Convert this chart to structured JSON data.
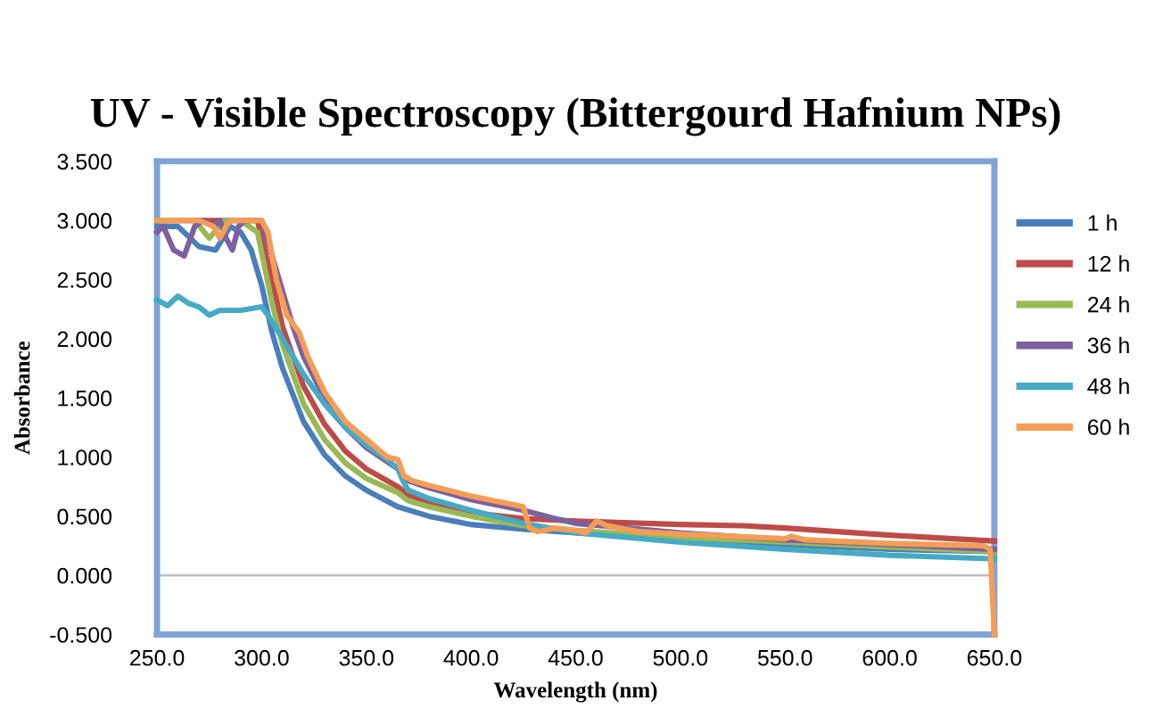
{
  "chart_data": {
    "type": "line",
    "title": "UV - Visible Spectroscopy (Bittergourd Hafnium NPs)",
    "xlabel": "Wavelength (nm)",
    "ylabel": "Absorbance",
    "xlim": [
      250,
      650
    ],
    "ylim": [
      -0.5,
      3.5
    ],
    "xticks": [
      {
        "value": 250,
        "label": "250.0"
      },
      {
        "value": 300,
        "label": "300.0"
      },
      {
        "value": 350,
        "label": "350.0"
      },
      {
        "value": 400,
        "label": "400.0"
      },
      {
        "value": 450,
        "label": "450.0"
      },
      {
        "value": 500,
        "label": "500.0"
      },
      {
        "value": 550,
        "label": "550.0"
      },
      {
        "value": 600,
        "label": "600.0"
      },
      {
        "value": 650,
        "label": "650.0"
      }
    ],
    "yticks": [
      {
        "value": -0.5,
        "label": "-0.500"
      },
      {
        "value": 0,
        "label": "0.000"
      },
      {
        "value": 0.5,
        "label": "0.500"
      },
      {
        "value": 1,
        "label": "1.000"
      },
      {
        "value": 1.5,
        "label": "1.500"
      },
      {
        "value": 2,
        "label": "2.000"
      },
      {
        "value": 2.5,
        "label": "2.500"
      },
      {
        "value": 3,
        "label": "3.000"
      },
      {
        "value": 3.5,
        "label": "3.500"
      }
    ],
    "ref_lines": [
      {
        "axis": "y",
        "value": 0,
        "color": "#bfbfbf"
      }
    ],
    "grid": false,
    "legend": "right",
    "marker": "none",
    "line_style": "solid",
    "series": [
      {
        "name": "1 h",
        "color": "#4a7ebb",
        "x": [
          250,
          260,
          270,
          278,
          285,
          290,
          295,
          300,
          305,
          310,
          320,
          330,
          340,
          350,
          365,
          380,
          400,
          425,
          450,
          500,
          550,
          600,
          650
        ],
        "values": [
          2.95,
          2.95,
          2.78,
          2.75,
          2.95,
          2.9,
          2.75,
          2.45,
          2.05,
          1.75,
          1.3,
          1.02,
          0.84,
          0.72,
          0.58,
          0.5,
          0.43,
          0.39,
          0.36,
          0.31,
          0.26,
          0.22,
          0.2
        ]
      },
      {
        "name": "12 h",
        "color": "#be4b48",
        "x": [
          250,
          290,
          298,
          300,
          305,
          310,
          320,
          330,
          340,
          350,
          365,
          370,
          380,
          400,
          425,
          450,
          500,
          530,
          550,
          600,
          650
        ],
        "values": [
          3.0,
          3.0,
          3.0,
          2.85,
          2.5,
          2.1,
          1.6,
          1.28,
          1.05,
          0.9,
          0.75,
          0.68,
          0.62,
          0.53,
          0.48,
          0.46,
          0.43,
          0.42,
          0.4,
          0.34,
          0.29
        ]
      },
      {
        "name": "24 h",
        "color": "#98b954",
        "x": [
          250,
          268,
          275,
          282,
          290,
          298,
          305,
          310,
          320,
          330,
          340,
          350,
          365,
          370,
          380,
          400,
          425,
          450,
          500,
          550,
          600,
          650
        ],
        "values": [
          3.0,
          3.0,
          2.85,
          3.0,
          3.0,
          2.9,
          2.3,
          1.95,
          1.45,
          1.15,
          0.95,
          0.82,
          0.7,
          0.63,
          0.58,
          0.5,
          0.42,
          0.38,
          0.32,
          0.28,
          0.24,
          0.2
        ]
      },
      {
        "name": "36 h",
        "color": "#7d60a0",
        "x": [
          250,
          253,
          258,
          263,
          268,
          272,
          277,
          280,
          283,
          286,
          289,
          292,
          300,
          305,
          310,
          315,
          320,
          330,
          340,
          350,
          365,
          370,
          380,
          400,
          425,
          440,
          450,
          500,
          550,
          600,
          650
        ],
        "values": [
          2.9,
          2.95,
          2.75,
          2.7,
          2.95,
          3.0,
          2.95,
          3.0,
          2.85,
          2.75,
          2.95,
          3.0,
          3.0,
          2.7,
          2.4,
          2.1,
          1.85,
          1.5,
          1.25,
          1.08,
          0.9,
          0.8,
          0.74,
          0.64,
          0.55,
          0.48,
          0.44,
          0.36,
          0.3,
          0.26,
          0.22
        ]
      },
      {
        "name": "48 h",
        "color": "#46aac5",
        "x": [
          250,
          255,
          260,
          265,
          270,
          275,
          280,
          290,
          300,
          303,
          310,
          320,
          330,
          340,
          350,
          360,
          365,
          368,
          370,
          380,
          400,
          425,
          450,
          500,
          550,
          600,
          650
        ],
        "values": [
          2.33,
          2.28,
          2.36,
          2.3,
          2.27,
          2.2,
          2.24,
          2.24,
          2.27,
          2.2,
          2.0,
          1.7,
          1.45,
          1.25,
          1.1,
          0.98,
          0.9,
          0.78,
          0.72,
          0.65,
          0.55,
          0.44,
          0.36,
          0.28,
          0.22,
          0.17,
          0.14
        ]
      },
      {
        "name": "60 h",
        "color": "#f59d56",
        "x": [
          250,
          270,
          277,
          280,
          283,
          285,
          300,
          303,
          307,
          312,
          318,
          322,
          330,
          340,
          350,
          360,
          365,
          368,
          372,
          380,
          400,
          425,
          428,
          432,
          440,
          450,
          455,
          460,
          465,
          480,
          500,
          550,
          553,
          560,
          600,
          645,
          648,
          650
        ],
        "values": [
          3.0,
          3.0,
          2.95,
          2.85,
          2.95,
          3.0,
          3.0,
          2.9,
          2.5,
          2.2,
          2.05,
          1.85,
          1.55,
          1.3,
          1.15,
          1.0,
          0.98,
          0.84,
          0.8,
          0.76,
          0.67,
          0.58,
          0.4,
          0.37,
          0.4,
          0.38,
          0.36,
          0.46,
          0.42,
          0.37,
          0.35,
          0.31,
          0.33,
          0.3,
          0.27,
          0.25,
          0.22,
          -0.5
        ]
      }
    ]
  }
}
